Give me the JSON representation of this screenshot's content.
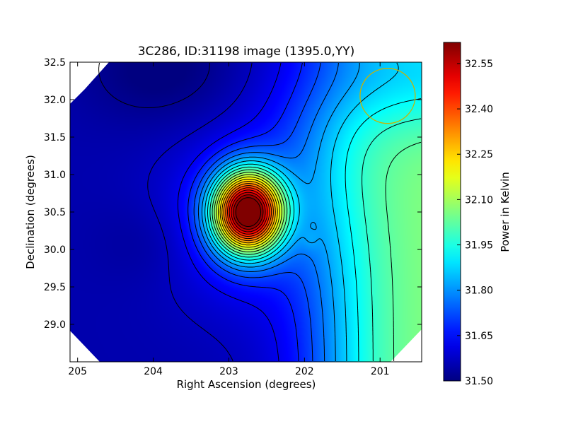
{
  "chart_data": {
    "type": "heatmap",
    "title": "3C286, ID:31198 image (1395.0,YY)",
    "xlabel": "Right Ascension (degrees)",
    "ylabel": "Declination (degrees)",
    "xlim": [
      205.1,
      200.45
    ],
    "ylim": [
      28.5,
      32.5
    ],
    "x_ticks": [
      205,
      204,
      203,
      202,
      201
    ],
    "y_ticks": [
      29.0,
      29.5,
      30.0,
      30.5,
      31.0,
      31.5,
      32.0,
      32.5
    ],
    "x_tick_labels": [
      "205",
      "204",
      "203",
      "202",
      "201"
    ],
    "y_tick_labels": [
      "29.0",
      "29.5",
      "30.0",
      "30.5",
      "31.0",
      "31.5",
      "32.0",
      "32.5"
    ],
    "colormap": "jet",
    "colorbar": {
      "label": "Power in Kelvin",
      "vmin": 31.5,
      "vmax": 32.62,
      "ticks": [
        31.5,
        31.65,
        31.8,
        31.95,
        32.1,
        32.25,
        32.4,
        32.55
      ],
      "tick_labels": [
        "31.50",
        "31.65",
        "31.80",
        "31.95",
        "32.10",
        "32.25",
        "32.40",
        "32.55"
      ]
    },
    "field_components": {
      "background": 31.55,
      "peak": {
        "ra": 202.75,
        "dec": 30.5,
        "value": 32.6
      },
      "east_gradient": {
        "max_value": 32.08
      },
      "north_trough": {
        "ra": 203.9,
        "dec": 32.4,
        "value": 31.5
      },
      "secondary_blob": {
        "ra": 201.92,
        "dec": 30.12
      }
    },
    "beam_marker": {
      "ra": 200.9,
      "dec": 32.05,
      "color": "#c8b400"
    },
    "contours": true,
    "grid": false,
    "legend": "none"
  }
}
